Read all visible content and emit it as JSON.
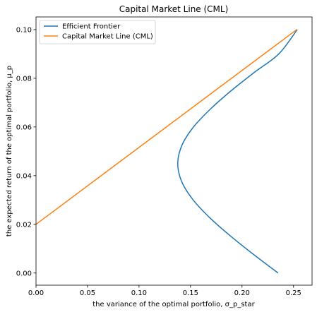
{
  "chart_data": {
    "type": "line",
    "title": "Capital Market Line (CML)",
    "xlabel": "the variance of the optimal portfolio, σ_p_star",
    "ylabel": "the expected return of the optimal portfolio, μ_p",
    "xlim": [
      0.0,
      0.268
    ],
    "ylim": [
      -0.005,
      0.1052
    ],
    "xticks": [
      0.0,
      0.05,
      0.1,
      0.15,
      0.2,
      0.25
    ],
    "xtick_labels": [
      "0.00",
      "0.05",
      "0.10",
      "0.15",
      "0.20",
      "0.25"
    ],
    "yticks": [
      0.0,
      0.02,
      0.04,
      0.06,
      0.08,
      0.1
    ],
    "ytick_labels": [
      "0.00",
      "0.02",
      "0.04",
      "0.06",
      "0.08",
      "0.10"
    ],
    "grid": false,
    "legend_position": "top-left",
    "series": [
      {
        "name": "Efficient Frontier",
        "color": "#1f77b4",
        "x": [
          0.235,
          0.2116,
          0.1894,
          0.1692,
          0.1526,
          0.1415,
          0.1376,
          0.1417,
          0.1529,
          0.1697,
          0.1898,
          0.2122,
          0.2357,
          0.2536
        ],
        "y": [
          0.0,
          0.0075,
          0.015,
          0.0225,
          0.03,
          0.0375,
          0.045,
          0.0525,
          0.06,
          0.0675,
          0.075,
          0.0825,
          0.09,
          0.1
        ]
      },
      {
        "name": "Capital Market Line (CML)",
        "color": "#ff7f0e",
        "x": [
          0.0,
          0.2531
        ],
        "y": [
          0.02,
          0.1
        ]
      }
    ]
  }
}
